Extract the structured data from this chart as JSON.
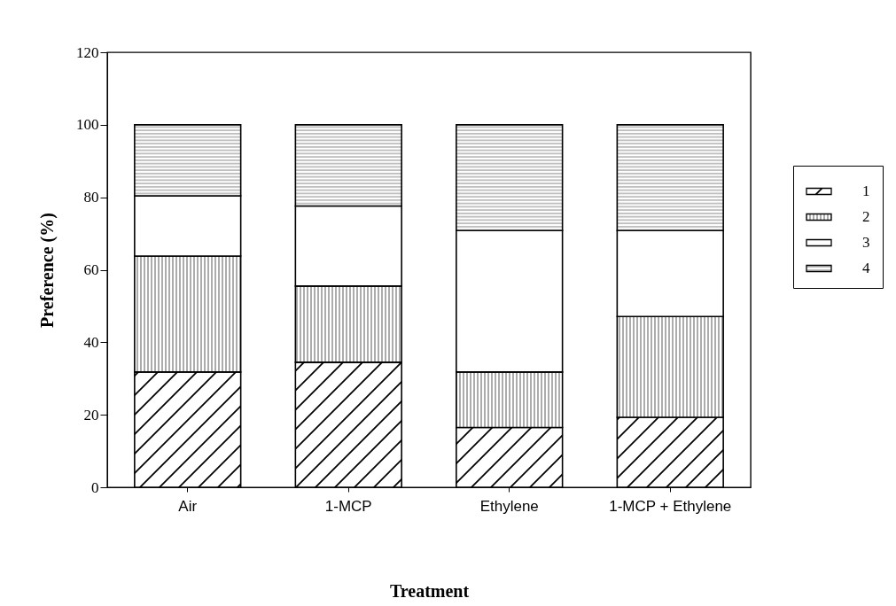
{
  "chart_data": {
    "type": "bar",
    "stacked": true,
    "xlabel": "Treatment",
    "ylabel": "Preference (%)",
    "categories": [
      "Air",
      "1-MCP",
      "Ethylene",
      "1-MCP + Ethylene"
    ],
    "ylim": [
      0,
      120
    ],
    "yticks": [
      0,
      20,
      40,
      60,
      80,
      100,
      120
    ],
    "grid": false,
    "legend": "right",
    "series": [
      {
        "name": "1",
        "color": "#000000",
        "values": [
          31.8,
          34.5,
          16.5,
          19.3
        ]
      },
      {
        "name": "2",
        "color": "#000000",
        "values": [
          32.0,
          21.0,
          15.3,
          27.8
        ]
      },
      {
        "name": "3",
        "color": "#000000",
        "values": [
          16.6,
          22.1,
          39.0,
          23.7
        ]
      },
      {
        "name": "4",
        "color": "#000000",
        "values": [
          19.6,
          22.4,
          29.2,
          29.2
        ]
      }
    ]
  }
}
